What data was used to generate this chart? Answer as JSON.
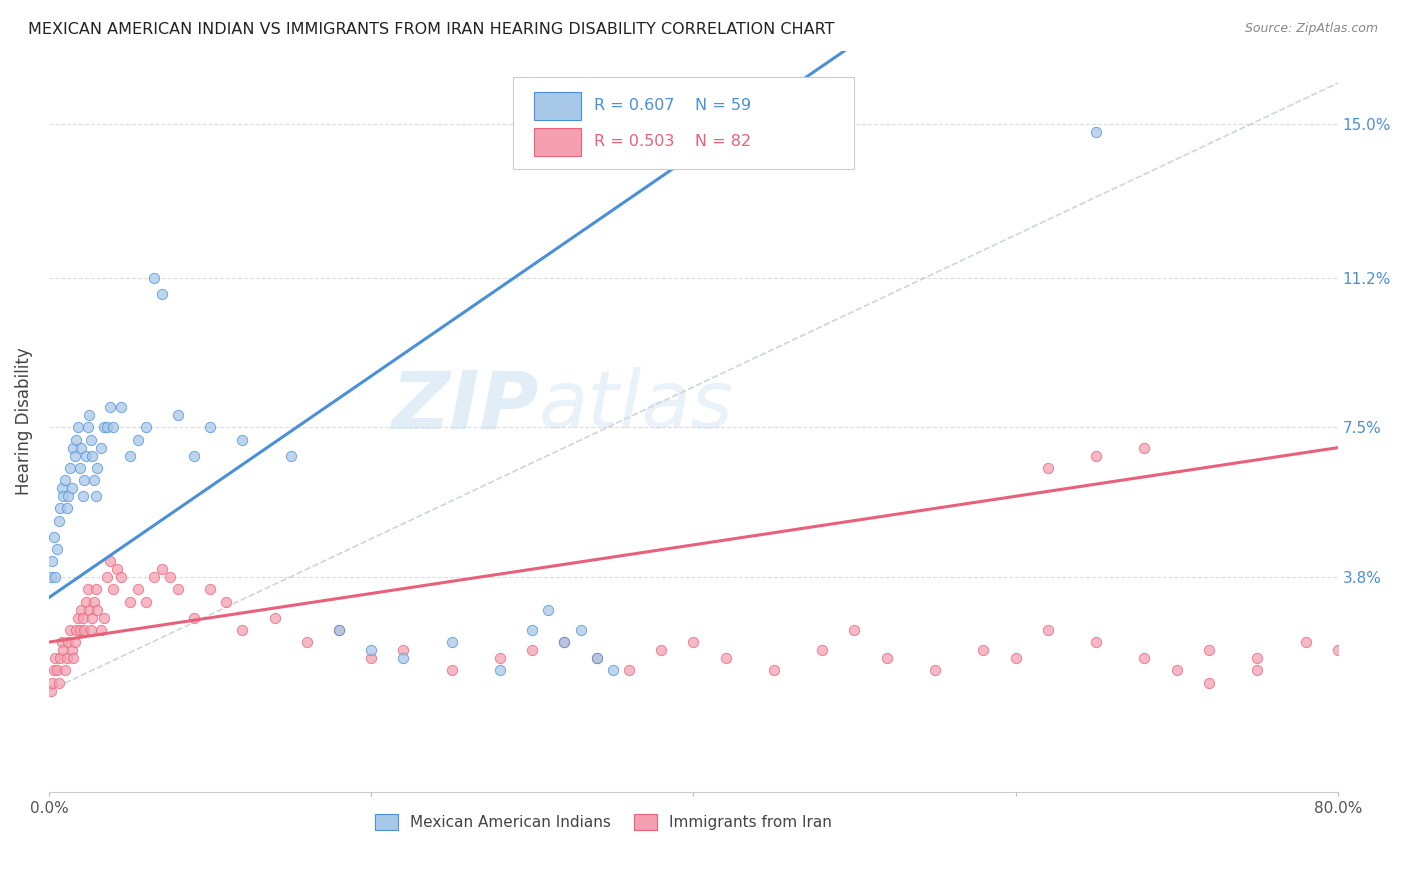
{
  "title": "MEXICAN AMERICAN INDIAN VS IMMIGRANTS FROM IRAN HEARING DISABILITY CORRELATION CHART",
  "source": "Source: ZipAtlas.com",
  "ylabel": "Hearing Disability",
  "yticks": [
    "15.0%",
    "11.2%",
    "7.5%",
    "3.8%"
  ],
  "ytick_vals": [
    0.15,
    0.112,
    0.075,
    0.038
  ],
  "xlim": [
    0.0,
    0.8
  ],
  "ylim": [
    -0.015,
    0.168
  ],
  "color_blue": "#a8c8e8",
  "color_pink": "#f4a0b0",
  "color_blue_line": "#4a90d9",
  "color_pink_line": "#e8607a",
  "color_grey_dash": "#b0b8c0",
  "watermark_zip": "ZIP",
  "watermark_atlas": "atlas",
  "background": "#ffffff",
  "blue_line_x0": 0.0,
  "blue_line_y0": 0.033,
  "blue_line_x1": 0.3,
  "blue_line_y1": 0.115,
  "pink_line_x0": 0.0,
  "pink_line_y0": 0.022,
  "pink_line_x1": 0.8,
  "pink_line_y1": 0.07,
  "blue_scatter_x": [
    0.001,
    0.002,
    0.003,
    0.004,
    0.005,
    0.006,
    0.007,
    0.008,
    0.009,
    0.01,
    0.011,
    0.012,
    0.013,
    0.014,
    0.015,
    0.016,
    0.017,
    0.018,
    0.019,
    0.02,
    0.021,
    0.022,
    0.023,
    0.024,
    0.025,
    0.026,
    0.027,
    0.028,
    0.029,
    0.03,
    0.032,
    0.034,
    0.036,
    0.038,
    0.04,
    0.045,
    0.05,
    0.055,
    0.06,
    0.065,
    0.07,
    0.08,
    0.09,
    0.1,
    0.12,
    0.15,
    0.18,
    0.2,
    0.22,
    0.25,
    0.28,
    0.3,
    0.31,
    0.32,
    0.33,
    0.34,
    0.35,
    0.38,
    0.65
  ],
  "blue_scatter_y": [
    0.038,
    0.042,
    0.048,
    0.038,
    0.045,
    0.052,
    0.055,
    0.06,
    0.058,
    0.062,
    0.055,
    0.058,
    0.065,
    0.06,
    0.07,
    0.068,
    0.072,
    0.075,
    0.065,
    0.07,
    0.058,
    0.062,
    0.068,
    0.075,
    0.078,
    0.072,
    0.068,
    0.062,
    0.058,
    0.065,
    0.07,
    0.075,
    0.075,
    0.08,
    0.075,
    0.08,
    0.068,
    0.072,
    0.075,
    0.112,
    0.108,
    0.078,
    0.068,
    0.075,
    0.072,
    0.068,
    0.025,
    0.02,
    0.018,
    0.022,
    0.015,
    0.025,
    0.03,
    0.022,
    0.025,
    0.018,
    0.015,
    0.145,
    0.148
  ],
  "pink_scatter_x": [
    0.001,
    0.002,
    0.003,
    0.004,
    0.005,
    0.006,
    0.007,
    0.008,
    0.009,
    0.01,
    0.011,
    0.012,
    0.013,
    0.014,
    0.015,
    0.016,
    0.017,
    0.018,
    0.019,
    0.02,
    0.021,
    0.022,
    0.023,
    0.024,
    0.025,
    0.026,
    0.027,
    0.028,
    0.029,
    0.03,
    0.032,
    0.034,
    0.036,
    0.038,
    0.04,
    0.042,
    0.045,
    0.05,
    0.055,
    0.06,
    0.065,
    0.07,
    0.075,
    0.08,
    0.09,
    0.1,
    0.11,
    0.12,
    0.14,
    0.16,
    0.18,
    0.2,
    0.22,
    0.25,
    0.28,
    0.3,
    0.32,
    0.34,
    0.36,
    0.38,
    0.4,
    0.42,
    0.45,
    0.48,
    0.5,
    0.52,
    0.55,
    0.58,
    0.6,
    0.62,
    0.65,
    0.68,
    0.7,
    0.72,
    0.75,
    0.78,
    0.8,
    0.62,
    0.65,
    0.68,
    0.72,
    0.75
  ],
  "pink_scatter_y": [
    0.01,
    0.012,
    0.015,
    0.018,
    0.015,
    0.012,
    0.018,
    0.022,
    0.02,
    0.015,
    0.018,
    0.022,
    0.025,
    0.02,
    0.018,
    0.022,
    0.025,
    0.028,
    0.025,
    0.03,
    0.028,
    0.025,
    0.032,
    0.035,
    0.03,
    0.025,
    0.028,
    0.032,
    0.035,
    0.03,
    0.025,
    0.028,
    0.038,
    0.042,
    0.035,
    0.04,
    0.038,
    0.032,
    0.035,
    0.032,
    0.038,
    0.04,
    0.038,
    0.035,
    0.028,
    0.035,
    0.032,
    0.025,
    0.028,
    0.022,
    0.025,
    0.018,
    0.02,
    0.015,
    0.018,
    0.02,
    0.022,
    0.018,
    0.015,
    0.02,
    0.022,
    0.018,
    0.015,
    0.02,
    0.025,
    0.018,
    0.015,
    0.02,
    0.018,
    0.025,
    0.022,
    0.018,
    0.015,
    0.02,
    0.018,
    0.022,
    0.02,
    0.065,
    0.068,
    0.07,
    0.012,
    0.015
  ]
}
